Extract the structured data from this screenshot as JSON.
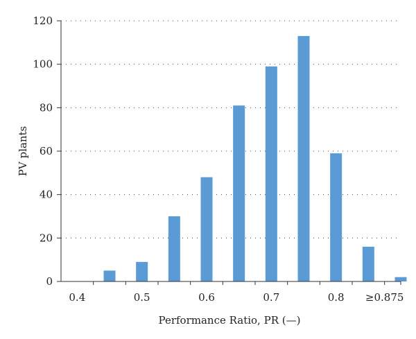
{
  "chart_data": {
    "type": "bar",
    "title": "",
    "xlabel": "Performance Ratio, PR (—)",
    "ylabel": "PV plants",
    "ylim": [
      0,
      120
    ],
    "yticks": [
      0,
      20,
      40,
      60,
      80,
      100,
      120
    ],
    "xlim": [
      0.375,
      0.9
    ],
    "xticks": [
      {
        "value": 0.4,
        "label": "0.4"
      },
      {
        "value": 0.5,
        "label": "0.5"
      },
      {
        "value": 0.6,
        "label": "0.6"
      },
      {
        "value": 0.7,
        "label": "0.7"
      },
      {
        "value": 0.8,
        "label": "0.8"
      },
      {
        "value": 0.875,
        "label": "≥0.875"
      }
    ],
    "x": [
      0.45,
      0.5,
      0.55,
      0.6,
      0.65,
      0.7,
      0.75,
      0.8,
      0.85,
      0.9
    ],
    "values": [
      5,
      9,
      30,
      48,
      81,
      99,
      113,
      59,
      16,
      2
    ],
    "grid": "horizontal dotted",
    "color": "#5b9bd5"
  }
}
